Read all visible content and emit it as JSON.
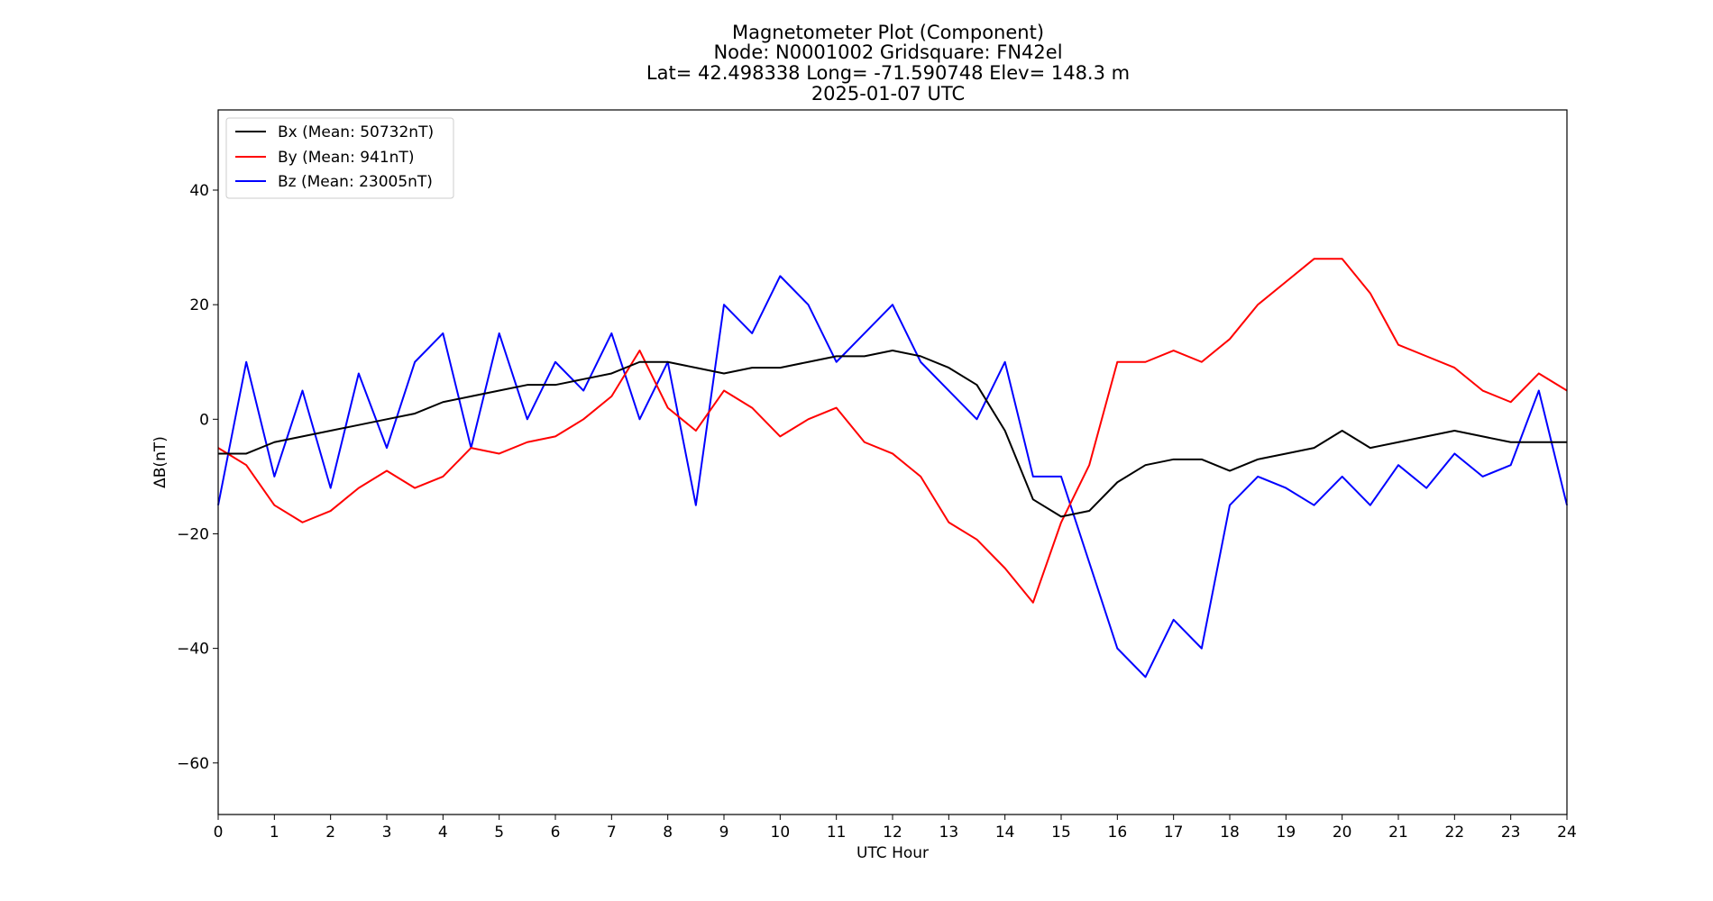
{
  "chart_data": {
    "type": "line",
    "title_lines": [
      "Magnetometer Plot (Component)",
      "Node:  N0001002     Gridsquare:  FN42el",
      "Lat= 42.498338    Long= -71.590748    Elev= 148.3 m",
      "2025-01-07  UTC"
    ],
    "xlabel": "UTC Hour",
    "ylabel": "ΔB(nT)",
    "xlim": [
      0,
      24
    ],
    "ylim": [
      -69,
      54
    ],
    "xticks": [
      0,
      1,
      2,
      3,
      4,
      5,
      6,
      7,
      8,
      9,
      10,
      11,
      12,
      13,
      14,
      15,
      16,
      17,
      18,
      19,
      20,
      21,
      22,
      23,
      24
    ],
    "xtick_labels": [
      "0",
      "1",
      "2",
      "3",
      "4",
      "5",
      "6",
      "7",
      "8",
      "9",
      "10",
      "11",
      "12",
      "13",
      "14",
      "15",
      "16",
      "17",
      "18",
      "19",
      "20",
      "21",
      "22",
      "23",
      "24"
    ],
    "yticks": [
      -60,
      -40,
      -20,
      0,
      20,
      40
    ],
    "ytick_labels": [
      "−60",
      "−40",
      "−20",
      "0",
      "20",
      "40"
    ],
    "grid": false,
    "legend_position": "top-left",
    "series": [
      {
        "name": "Bx (Mean: 50732nT)",
        "color": "#000000",
        "x": [
          0,
          0.5,
          1,
          1.5,
          2,
          2.5,
          3,
          3.5,
          4,
          4.5,
          5,
          5.5,
          6,
          6.5,
          7,
          7.5,
          8,
          8.5,
          9,
          9.5,
          10,
          10.5,
          11,
          11.5,
          12,
          12.5,
          13,
          13.5,
          14,
          14.5,
          15,
          15.5,
          16,
          16.5,
          17,
          17.5,
          18,
          18.5,
          19,
          19.5,
          20,
          20.5,
          21,
          21.5,
          22,
          22.5,
          23,
          23.5,
          24
        ],
        "y": [
          -6,
          -6,
          -4,
          -3,
          -2,
          -1,
          0,
          1,
          3,
          4,
          5,
          6,
          6,
          7,
          8,
          10,
          10,
          9,
          8,
          9,
          9,
          10,
          11,
          11,
          12,
          11,
          9,
          6,
          -2,
          -14,
          -17,
          -16,
          -11,
          -8,
          -7,
          -7,
          -9,
          -7,
          -6,
          -5,
          -2,
          -5,
          -4,
          -3,
          -2,
          -3,
          -4,
          -4,
          -4
        ]
      },
      {
        "name": "By (Mean: 941nT)",
        "color": "#ff0000",
        "x": [
          0,
          0.5,
          1,
          1.5,
          2,
          2.5,
          3,
          3.5,
          4,
          4.5,
          5,
          5.5,
          6,
          6.5,
          7,
          7.5,
          8,
          8.5,
          9,
          9.5,
          10,
          10.5,
          11,
          11.5,
          12,
          12.5,
          13,
          13.5,
          14,
          14.5,
          15,
          15.5,
          16,
          16.5,
          17,
          17.5,
          18,
          18.5,
          19,
          19.5,
          20,
          20.5,
          21,
          21.5,
          22,
          22.5,
          23,
          23.5,
          24
        ],
        "y": [
          -5,
          -8,
          -15,
          -18,
          -16,
          -12,
          -9,
          -12,
          -10,
          -5,
          -6,
          -4,
          -3,
          0,
          4,
          12,
          2,
          -2,
          5,
          2,
          -3,
          0,
          2,
          -4,
          -6,
          -10,
          -18,
          -21,
          -26,
          -32,
          -18,
          -8,
          10,
          10,
          12,
          10,
          14,
          20,
          24,
          28,
          28,
          22,
          13,
          11,
          9,
          5,
          3,
          8,
          5
        ]
      },
      {
        "name": "Bz (Mean: 23005nT)",
        "color": "#0000ff",
        "x": [
          0,
          0.5,
          1,
          1.5,
          2,
          2.5,
          3,
          3.5,
          4,
          4.5,
          5,
          5.5,
          6,
          6.5,
          7,
          7.5,
          8,
          8.5,
          9,
          9.5,
          10,
          10.5,
          11,
          11.5,
          12,
          12.5,
          13,
          13.5,
          14,
          14.5,
          15,
          15.5,
          16,
          16.5,
          17,
          17.5,
          18,
          18.5,
          19,
          19.5,
          20,
          20.5,
          21,
          21.5,
          22,
          22.5,
          23,
          23.5,
          24
        ],
        "y": [
          -15,
          10,
          -10,
          5,
          -12,
          8,
          -5,
          10,
          15,
          -5,
          15,
          0,
          10,
          5,
          15,
          0,
          10,
          -15,
          20,
          15,
          25,
          20,
          10,
          15,
          20,
          10,
          5,
          0,
          10,
          -10,
          -10,
          -25,
          -40,
          -45,
          -35,
          -40,
          -15,
          -10,
          -12,
          -15,
          -10,
          -15,
          -8,
          -12,
          -6,
          -10,
          -8,
          5,
          -15
        ]
      }
    ]
  }
}
